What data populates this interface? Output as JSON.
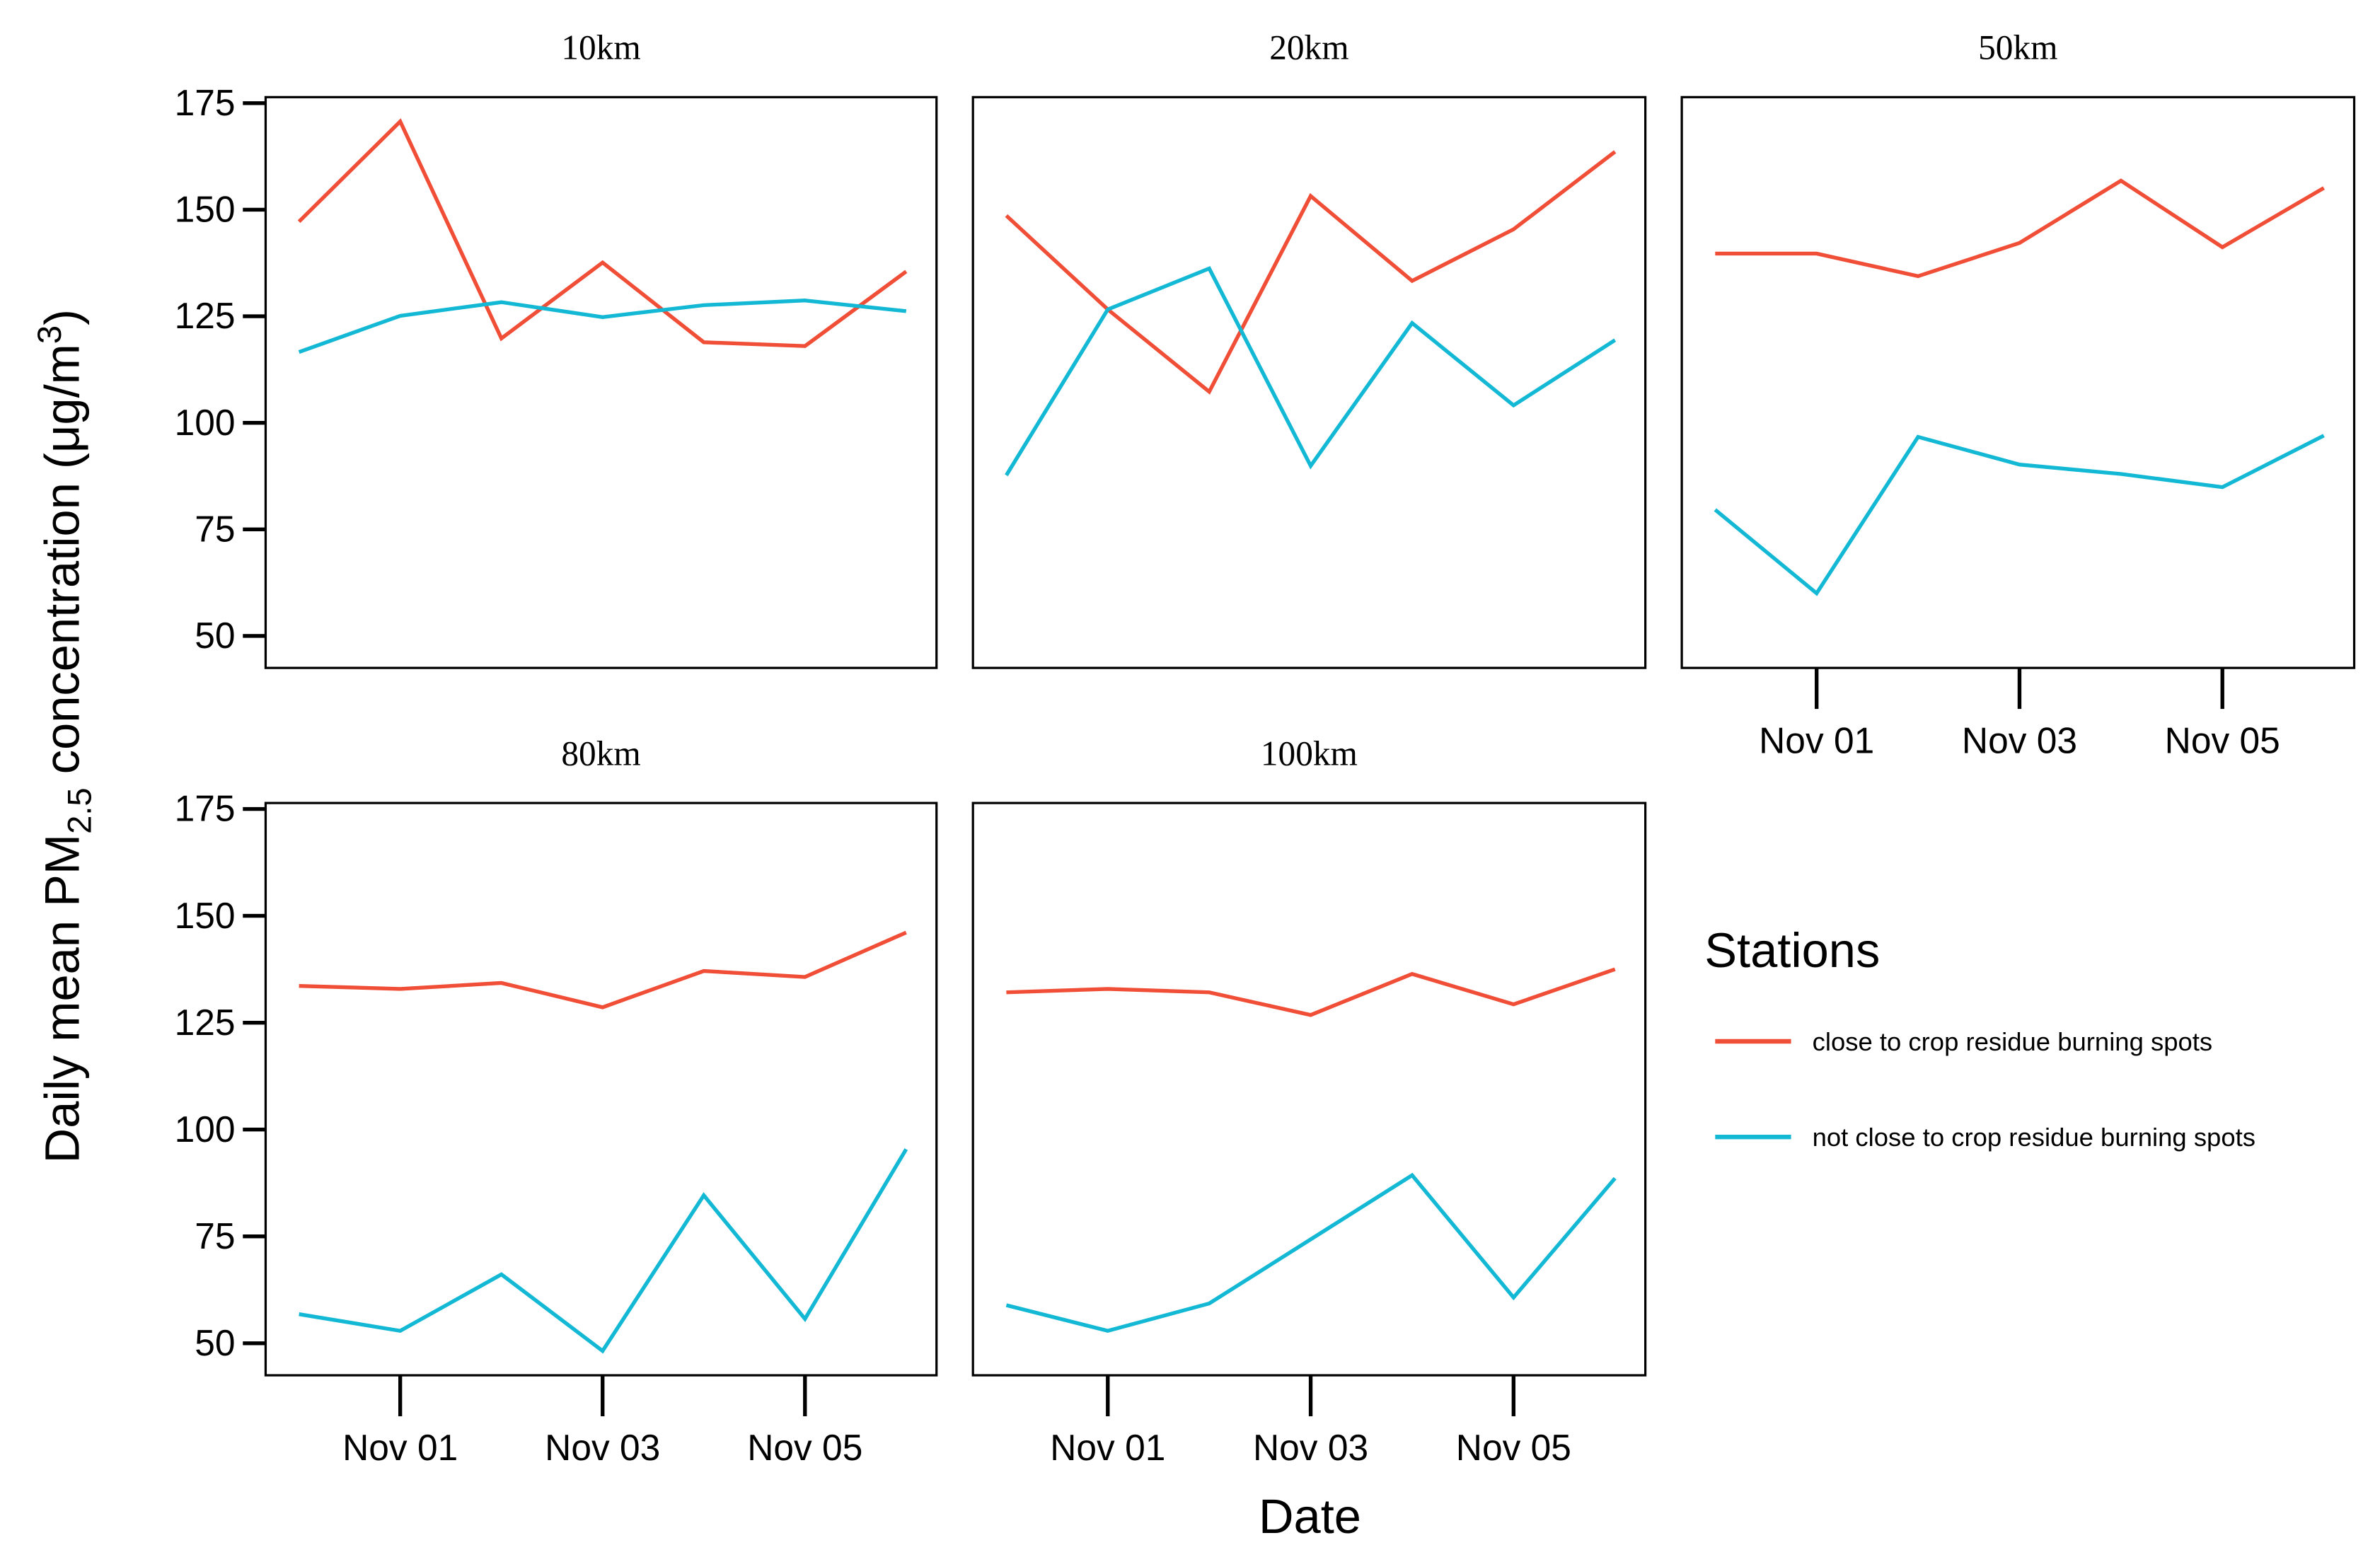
{
  "figure": {
    "xlabel": "Date",
    "ylabel": [
      "Daily mean PM",
      "2.5",
      " concentration (μg/m",
      "3",
      ")"
    ],
    "legend": {
      "title": "Stations",
      "entries": [
        {
          "name": "close to crop residue burning spots",
          "color": "#f04e37"
        },
        {
          "name": "not close to crop residue burning spots",
          "color": "#13b8d4"
        }
      ]
    }
  },
  "chart_data": [
    {
      "type": "line",
      "title": "10km",
      "x": [
        "Oct 31",
        "Nov 01",
        "Nov 02",
        "Nov 03",
        "Nov 04",
        "Nov 05",
        "Nov 06"
      ],
      "xticks": [
        "Nov 01",
        "Nov 03",
        "Nov 05"
      ],
      "ylim": [
        42.5,
        176.4
      ],
      "yticks": [
        50,
        75,
        100,
        125,
        150,
        175
      ],
      "series": [
        {
          "values": [
            147.2,
            170.7,
            119.8,
            137.6,
            118.9,
            118,
            135.5
          ]
        },
        {
          "values": [
            116.6,
            125.1,
            128.3,
            124.8,
            127.6,
            128.7,
            126.2
          ]
        }
      ]
    },
    {
      "type": "line",
      "title": "20km",
      "x": [
        "Oct 31",
        "Nov 01",
        "Nov 02",
        "Nov 03",
        "Nov 04",
        "Nov 05",
        "Nov 06"
      ],
      "xticks": [
        "Nov 01",
        "Nov 03",
        "Nov 05"
      ],
      "ylim": [
        42.5,
        176.4
      ],
      "yticks": [
        50,
        75,
        100,
        125,
        150,
        175
      ],
      "series": [
        {
          "values": [
            148.6,
            126.6,
            107.3,
            153.2,
            133.3,
            145.4,
            163.6
          ]
        },
        {
          "values": [
            87.7,
            126.6,
            136.2,
            89.9,
            123.4,
            104.1,
            119.4
          ]
        }
      ]
    },
    {
      "type": "line",
      "title": "50km",
      "x": [
        "Oct 31",
        "Nov 01",
        "Nov 02",
        "Nov 03",
        "Nov 04",
        "Nov 05",
        "Nov 06"
      ],
      "xticks": [
        "Nov 01",
        "Nov 03",
        "Nov 05"
      ],
      "ylim": [
        42.5,
        176.4
      ],
      "yticks": [
        50,
        75,
        100,
        125,
        150,
        175
      ],
      "series": [
        {
          "values": [
            139.7,
            139.7,
            134.4,
            142.2,
            156.8,
            141.2,
            155.1
          ]
        },
        {
          "values": [
            79.6,
            60,
            96.7,
            90.2,
            88,
            84.9,
            97
          ]
        }
      ]
    },
    {
      "type": "line",
      "title": "80km",
      "x": [
        "Oct 31",
        "Nov 01",
        "Nov 02",
        "Nov 03",
        "Nov 04",
        "Nov 05",
        "Nov 06"
      ],
      "xticks": [
        "Nov 01",
        "Nov 03",
        "Nov 05"
      ],
      "ylim": [
        42.5,
        176.4
      ],
      "yticks": [
        50,
        75,
        100,
        125,
        150,
        175
      ],
      "series": [
        {
          "values": [
            133.6,
            132.9,
            134.3,
            128.6,
            137.1,
            135.7,
            146.1
          ]
        },
        {
          "values": [
            56.8,
            52.9,
            66.1,
            48.2,
            84.6,
            55.7,
            95.4
          ]
        }
      ]
    },
    {
      "type": "line",
      "title": "100km",
      "x": [
        "Oct 31",
        "Nov 01",
        "Nov 02",
        "Nov 03",
        "Nov 04",
        "Nov 05",
        "Nov 06"
      ],
      "xticks": [
        "Nov 01",
        "Nov 03",
        "Nov 05"
      ],
      "ylim": [
        42.5,
        176.4
      ],
      "yticks": [
        50,
        75,
        100,
        125,
        150,
        175
      ],
      "series": [
        {
          "values": [
            132.1,
            132.9,
            132.1,
            126.8,
            136.4,
            129.3,
            137.5
          ]
        },
        {
          "values": [
            58.9,
            52.9,
            59.3,
            74.3,
            89.3,
            60.7,
            88.6
          ]
        }
      ]
    }
  ]
}
